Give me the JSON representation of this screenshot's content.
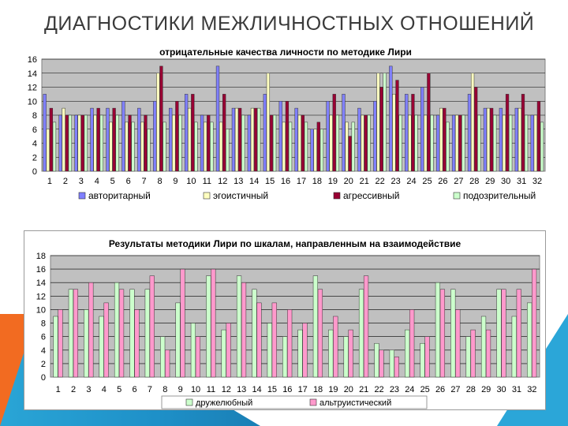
{
  "slide": {
    "title": "ДИАГНОСТИКИ МЕЖЛИЧНОСТНЫХ ОТНОШЕНИЙ"
  },
  "colors": {
    "plot_bg": "#c0c0c0",
    "grid": "#000000",
    "authoritarian": "#8080ff",
    "egoistic": "#ffffc0",
    "aggressive": "#990033",
    "suspicious": "#ccffcc",
    "friendly": "#ccffcc",
    "altruistic": "#ff99cc"
  },
  "chart_data": [
    {
      "type": "bar",
      "title": "отрицательные качества личности по методике Лири",
      "xlabel": "",
      "ylabel": "",
      "ylim": [
        0,
        16
      ],
      "yticks": [
        0,
        2,
        4,
        6,
        8,
        10,
        12,
        14,
        16
      ],
      "grid": true,
      "legend": "bottom",
      "categories": [
        "1",
        "2",
        "3",
        "4",
        "5",
        "6",
        "7",
        "8",
        "9",
        "10",
        "11",
        "12",
        "13",
        "14",
        "15",
        "16",
        "17",
        "18",
        "19",
        "20",
        "21",
        "22",
        "23",
        "24",
        "25",
        "26",
        "27",
        "28",
        "29",
        "30",
        "31",
        "32"
      ],
      "series": [
        {
          "name": "авторитарный",
          "color": "#8080ff",
          "values": [
            11,
            8,
            8,
            9,
            9,
            10,
            9,
            10,
            9,
            11,
            8,
            15,
            9,
            8,
            11,
            10,
            9,
            6,
            10,
            11,
            9,
            10,
            15,
            11,
            12,
            8,
            8,
            11,
            9,
            9,
            9,
            8
          ]
        },
        {
          "name": "эгоистичный",
          "color": "#ffffc0",
          "values": [
            6,
            9,
            8,
            8,
            7,
            7,
            7,
            14,
            8,
            9,
            7,
            7,
            9,
            9,
            14,
            7,
            8,
            6,
            8,
            7,
            8,
            14,
            11,
            8,
            8,
            9,
            8,
            14,
            9,
            8,
            9,
            8
          ]
        },
        {
          "name": "агрессивный",
          "color": "#990033",
          "values": [
            9,
            8,
            8,
            9,
            9,
            8,
            8,
            15,
            10,
            11,
            8,
            11,
            9,
            9,
            8,
            10,
            8,
            7,
            11,
            5,
            8,
            12,
            13,
            11,
            14,
            9,
            8,
            12,
            9,
            11,
            11,
            10
          ]
        },
        {
          "name": "подозрительный",
          "color": "#ccffcc",
          "values": [
            7,
            8,
            8,
            8,
            8,
            7,
            6,
            7,
            8,
            7,
            7,
            6,
            8,
            9,
            8,
            7,
            7,
            6,
            8,
            7,
            8,
            14,
            8,
            8,
            8,
            7,
            8,
            8,
            8,
            8,
            8,
            7
          ]
        }
      ]
    },
    {
      "type": "bar",
      "title": "Результаты методики Лири по шкалам, направленным на взаимодействие",
      "xlabel": "",
      "ylabel": "",
      "ylim": [
        0,
        18
      ],
      "yticks": [
        0,
        2,
        4,
        6,
        8,
        10,
        12,
        14,
        16,
        18
      ],
      "grid": true,
      "legend": "bottom",
      "categories": [
        "1",
        "2",
        "3",
        "4",
        "5",
        "6",
        "7",
        "8",
        "9",
        "10",
        "11",
        "12",
        "13",
        "14",
        "15",
        "16",
        "17",
        "18",
        "19",
        "20",
        "21",
        "22",
        "23",
        "24",
        "25",
        "26",
        "27",
        "28",
        "29",
        "30",
        "31",
        "32"
      ],
      "series": [
        {
          "name": "дружелюбный",
          "color": "#ccffcc",
          "values": [
            9,
            13,
            10,
            9,
            14,
            13,
            13,
            6,
            11,
            8,
            15,
            7,
            15,
            13,
            8,
            6,
            7,
            15,
            7,
            6,
            13,
            5,
            4,
            7,
            5,
            14,
            13,
            6,
            9,
            13,
            9,
            11
          ]
        },
        {
          "name": "альтруистический",
          "color": "#ff99cc",
          "values": [
            10,
            13,
            14,
            11,
            13,
            10,
            15,
            4,
            16,
            6,
            16,
            8,
            14,
            11,
            11,
            10,
            8,
            13,
            9,
            7,
            15,
            4,
            3,
            10,
            6,
            13,
            10,
            7,
            7,
            13,
            13,
            16
          ]
        }
      ]
    }
  ]
}
